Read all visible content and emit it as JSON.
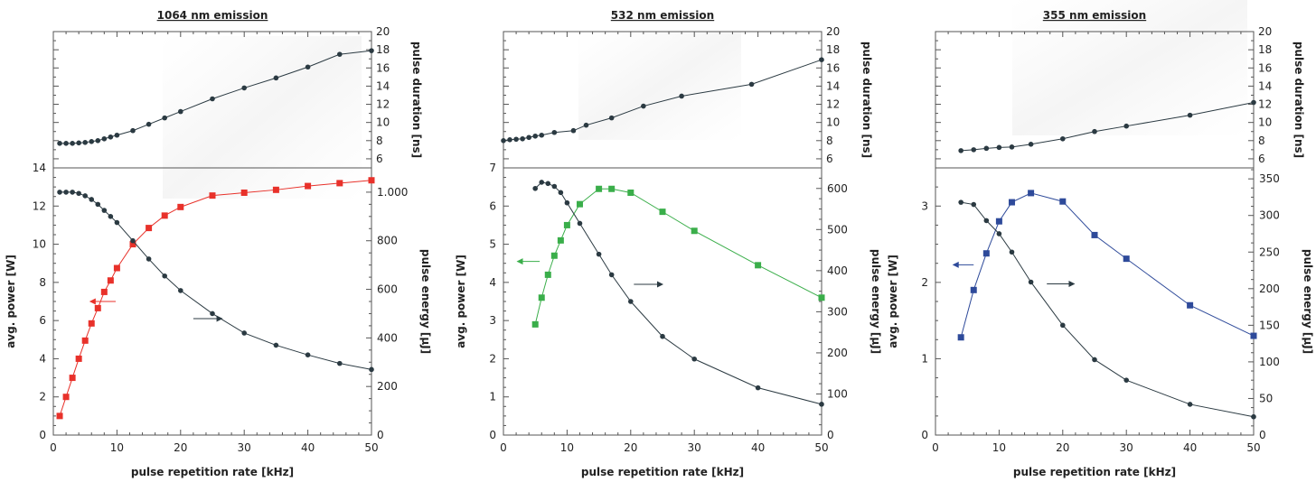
{
  "chart_data": [
    {
      "type": "line",
      "title": "1064 nm emission",
      "xlabel": "pulse repetition rate [kHz]",
      "xlim": [
        0,
        50
      ],
      "xticks": [
        0,
        10,
        20,
        30,
        40,
        50
      ],
      "top_panel": {
        "ylabel": "pulse duration [ns]",
        "ylim": [
          5,
          20
        ],
        "yticks": [
          6,
          8,
          10,
          12,
          14,
          16,
          18,
          20
        ],
        "series": [
          {
            "color": "#2b3a42",
            "marker": "circle",
            "x": [
              1,
              2,
              3,
              4,
              5,
              6,
              7,
              8,
              9,
              10,
              12.5,
              15,
              17.5,
              20,
              25,
              30,
              35,
              40,
              45,
              50
            ],
            "y": [
              7.7,
              7.7,
              7.7,
              7.75,
              7.8,
              7.9,
              8.0,
              8.2,
              8.4,
              8.6,
              9.1,
              9.8,
              10.5,
              11.2,
              12.6,
              13.8,
              14.9,
              16.1,
              17.5,
              17.9
            ]
          }
        ]
      },
      "bottom_panel": {
        "ylabel_left": "avg. power [W]",
        "ylim_left": [
          0,
          14
        ],
        "yticks_left": [
          0,
          2,
          4,
          6,
          8,
          10,
          12,
          14
        ],
        "ylabel_right": "pulse energy [µJ]",
        "ylim_right": [
          0,
          1100
        ],
        "yticks_right": [
          0,
          200,
          400,
          600,
          800,
          1000
        ],
        "yticklabels_right": [
          "0",
          "200",
          "400",
          "600",
          "800",
          "1.000"
        ],
        "series": [
          {
            "axis": "left",
            "color": "#e8312a",
            "marker": "square",
            "x": [
              1,
              2,
              3,
              4,
              5,
              6,
              7,
              8,
              9,
              10,
              12.5,
              15,
              17.5,
              20,
              25,
              30,
              35,
              40,
              45,
              50
            ],
            "y": [
              1.0,
              2.0,
              3.0,
              4.0,
              4.95,
              5.85,
              6.65,
              7.5,
              8.1,
              8.75,
              10.0,
              10.85,
              11.5,
              11.95,
              12.55,
              12.7,
              12.85,
              13.05,
              13.2,
              13.35
            ]
          },
          {
            "axis": "right",
            "color": "#2b3a42",
            "marker": "circle",
            "x": [
              1,
              2,
              3,
              4,
              5,
              6,
              7,
              8,
              9,
              10,
              12.5,
              15,
              17.5,
              20,
              25,
              30,
              35,
              40,
              45,
              50
            ],
            "y": [
              1000,
              1000,
              1000,
              995,
              985,
              970,
              950,
              925,
              900,
              875,
              800,
              725,
              655,
              595,
              500,
              420,
              370,
              330,
              295,
              270
            ]
          }
        ],
        "arrows": [
          {
            "dir": "left",
            "color": "#e8312a",
            "x": 5.8,
            "y_left": 7.0,
            "len": 4
          },
          {
            "dir": "right",
            "color": "#2b3a42",
            "x": 22,
            "y_left": 6.1,
            "len": 4.5
          }
        ]
      }
    },
    {
      "type": "line",
      "title": "532 nm emission",
      "xlabel": "pulse repetition rate [kHz]",
      "xlim": [
        0,
        50
      ],
      "xticks": [
        0,
        10,
        20,
        30,
        40,
        50
      ],
      "top_panel": {
        "ylabel": "pulse duration [ns]",
        "ylim": [
          5,
          20
        ],
        "yticks": [
          6,
          8,
          10,
          12,
          14,
          16,
          18,
          20
        ],
        "series": [
          {
            "color": "#2b3a42",
            "marker": "circle",
            "x": [
              0,
              1,
              2,
              3,
              4,
              5,
              6,
              8,
              11,
              13,
              17,
              22,
              28,
              39,
              50
            ],
            "y": [
              8.0,
              8.1,
              8.15,
              8.2,
              8.35,
              8.5,
              8.6,
              8.9,
              9.1,
              9.7,
              10.5,
              11.8,
              12.9,
              14.2,
              16.9
            ]
          }
        ]
      },
      "bottom_panel": {
        "ylabel_left": "avg. power [W]",
        "ylim_left": [
          0,
          7
        ],
        "yticks_left": [
          0,
          1,
          2,
          3,
          4,
          5,
          6,
          7
        ],
        "ylabel_right": "pulse energy [µJ]",
        "ylim_right": [
          0,
          650
        ],
        "yticks_right": [
          0,
          100,
          200,
          300,
          400,
          500,
          600
        ],
        "yticklabels_right": [
          "0",
          "100",
          "200",
          "300",
          "400",
          "500",
          "600"
        ],
        "series": [
          {
            "axis": "left",
            "color": "#3aae4a",
            "marker": "square",
            "x": [
              5,
              6,
              7,
              8,
              9,
              10,
              12,
              15,
              17,
              20,
              25,
              30,
              40,
              50
            ],
            "y": [
              2.9,
              3.6,
              4.2,
              4.7,
              5.1,
              5.5,
              6.05,
              6.45,
              6.45,
              6.35,
              5.85,
              5.35,
              4.45,
              3.6
            ]
          },
          {
            "axis": "right",
            "color": "#2b3a42",
            "marker": "circle",
            "x": [
              5,
              6,
              7,
              8,
              9,
              10,
              12,
              15,
              17,
              20,
              25,
              30,
              40,
              50
            ],
            "y": [
              600,
              615,
              612,
              605,
              590,
              565,
              515,
              440,
              390,
              325,
              240,
              185,
              115,
              75
            ]
          }
        ],
        "arrows": [
          {
            "dir": "left",
            "color": "#3aae4a",
            "x": 2.2,
            "y_left": 4.55,
            "len": 3.5
          },
          {
            "dir": "right",
            "color": "#2b3a42",
            "x": 20.5,
            "y_left": 3.95,
            "len": 4.5
          }
        ]
      }
    },
    {
      "type": "line",
      "title": "355 nm emission",
      "xlabel": "pulse repetition rate [kHz]",
      "xlim": [
        0,
        50
      ],
      "xticks": [
        0,
        10,
        20,
        30,
        40,
        50
      ],
      "top_panel": {
        "ylabel": "pulse duration [ns]",
        "ylim": [
          5,
          20
        ],
        "yticks": [
          6,
          8,
          10,
          12,
          14,
          16,
          18,
          20
        ],
        "series": [
          {
            "color": "#2b3a42",
            "marker": "circle",
            "x": [
              4,
              6,
              8,
              10,
              12,
              15,
              20,
              25,
              30,
              40,
              50
            ],
            "y": [
              6.9,
              7.0,
              7.15,
              7.25,
              7.3,
              7.6,
              8.2,
              9.0,
              9.6,
              10.8,
              12.2
            ]
          }
        ]
      },
      "bottom_panel": {
        "ylabel_left": "avg. power [W]",
        "ylim_left": [
          0,
          3.5
        ],
        "yticks_left": [
          0,
          1,
          2,
          3
        ],
        "ylabel_right": "pulse energy [µJ]",
        "ylim_right": [
          0,
          365
        ],
        "yticks_right": [
          0,
          50,
          100,
          150,
          200,
          250,
          300,
          350
        ],
        "yticklabels_right": [
          "0",
          "50",
          "100",
          "150",
          "200",
          "250",
          "300",
          "350"
        ],
        "series": [
          {
            "axis": "left",
            "color": "#2e4a9a",
            "marker": "square",
            "x": [
              4,
              6,
              8,
              10,
              12,
              15,
              20,
              25,
              30,
              40,
              50
            ],
            "y": [
              1.28,
              1.9,
              2.38,
              2.8,
              3.05,
              3.17,
              3.06,
              2.62,
              2.31,
              1.7,
              1.3
            ]
          },
          {
            "axis": "right",
            "color": "#2b3a42",
            "marker": "circle",
            "x": [
              4,
              6,
              8,
              10,
              12,
              15,
              20,
              25,
              30,
              40,
              50
            ],
            "y": [
              318,
              315,
              293,
              275,
              250,
              209,
              150,
              103,
              75,
              42,
              25
            ]
          }
        ],
        "arrows": [
          {
            "dir": "left",
            "color": "#2e4a9a",
            "x": 2.8,
            "y_left": 2.23,
            "len": 3.2
          },
          {
            "dir": "right",
            "color": "#2b3a42",
            "x": 17.5,
            "y_left": 1.98,
            "len": 4.3
          }
        ]
      }
    }
  ]
}
